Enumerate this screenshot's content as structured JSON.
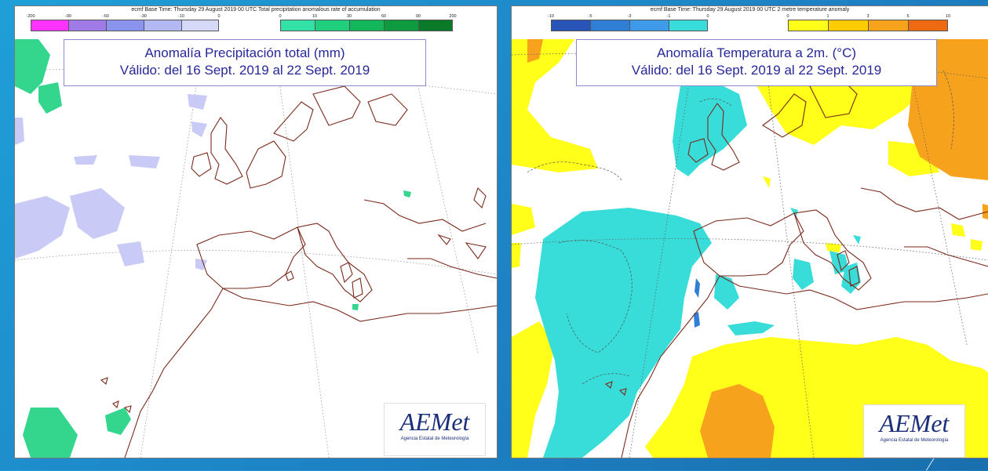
{
  "left_panel": {
    "header": "ecmf  Base Time: Thursday 29 August 2019 00 UTC Total precipitation anomalous rate of accumulation",
    "legend_neg_ticks": [
      "-200",
      "-90",
      "-60",
      "-30",
      "-10",
      "0"
    ],
    "legend_pos_ticks": [
      "0",
      "10",
      "30",
      "60",
      "90",
      "200"
    ],
    "legend_neg_colors": [
      "#ff33ff",
      "#a07be8",
      "#8a94ee",
      "#b2b8f2",
      "#d6d8f8"
    ],
    "legend_pos_colors": [
      "#33e0a6",
      "#1fcf7d",
      "#14b65a",
      "#0e9a3e",
      "#0a7a28"
    ],
    "title_line1": "Anomalía Precipitación total (mm)",
    "title_line2": "Válido: del 16 Sept. 2019 al 22 Sept. 2019",
    "logo_text": "AEMet",
    "logo_subtitle": "Agencia Estatal de Meteorología"
  },
  "right_panel": {
    "header": "ecmf  Base Time: Thursday 29 August 2019 00 UTC 2 metre temperature anomaly",
    "legend_neg_ticks": [
      "-10",
      "-5",
      "-3",
      "-1",
      "0"
    ],
    "legend_pos_ticks": [
      "0",
      "1",
      "3",
      "5",
      "10"
    ],
    "legend_neg_colors": [
      "#2a55b8",
      "#2f7fd6",
      "#3f9bea",
      "#38dcd8"
    ],
    "legend_pos_colors": [
      "#ffff1a",
      "#ffcc00",
      "#f6a21d",
      "#ee6a10"
    ],
    "title_line1": "Anomalía Temperatura a 2m. (°C)",
    "title_line2": "Válido: del 16 Sept. 2019 al 22 Sept. 2019",
    "logo_text": "AEMet",
    "logo_subtitle": "Agencia Estatal de Meteorología"
  }
}
